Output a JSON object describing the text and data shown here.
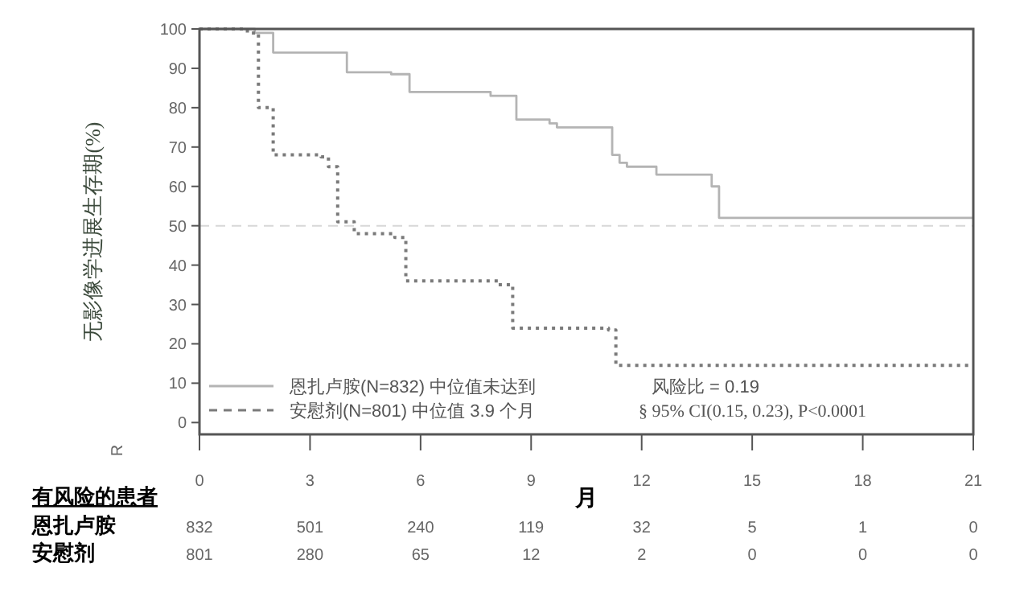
{
  "chart_data": {
    "type": "step",
    "ylabel": "无影像学进展生存期(%)",
    "xlabel": "月",
    "xlim": [
      0,
      21
    ],
    "xticks": [
      0,
      3,
      6,
      9,
      12,
      15,
      18,
      21
    ],
    "ylim": [
      -3,
      100
    ],
    "yticks": [
      0,
      10,
      20,
      30,
      40,
      50,
      60,
      70,
      80,
      90,
      100
    ],
    "grid": false,
    "legend": "bottom left",
    "ref_lines": [
      {
        "axis": "y",
        "value": 50,
        "color": "#d8d8d8",
        "line_style": "dashed"
      }
    ],
    "series": [
      {
        "name": "恩扎卢胺(N=832) 中位值未达到",
        "color": "#b4b4b4",
        "line_style": "solid",
        "x": [
          0,
          1.5,
          2.0,
          3.75,
          4.0,
          5.2,
          5.7,
          7.9,
          8.6,
          9.5,
          9.7,
          10.9,
          11.2,
          11.4,
          11.6,
          12.4,
          13.9,
          14.1,
          21
        ],
        "values": [
          100,
          99,
          94,
          94,
          89,
          88.5,
          84,
          83,
          77,
          76,
          75,
          75,
          68,
          66,
          65,
          63,
          60,
          52,
          52
        ]
      },
      {
        "name": "安慰剂(N=801) 中位值 3.9 个月",
        "color": "#7a7a7a",
        "line_style": "dotted",
        "x": [
          0,
          1.3,
          1.6,
          2.0,
          3.3,
          3.5,
          3.75,
          4.2,
          5.3,
          5.6,
          8.1,
          8.5,
          11.1,
          11.3,
          21
        ],
        "values": [
          100,
          99,
          80,
          68,
          67.5,
          65,
          51,
          48,
          47,
          36,
          35,
          24,
          23.5,
          14.5,
          14.5
        ]
      }
    ],
    "annotations": [
      "有风险的患者",
      "恩扎卢胺",
      "832",
      "501",
      "240",
      "119",
      "32",
      "5",
      "1",
      "0",
      "安慰剂",
      "801",
      "280",
      "65",
      "12",
      "2",
      "0",
      "0",
      "0",
      "风险比 = 0.19",
      "§ 95% CI(0.15, 0.23), P<0.0001",
      "R"
    ]
  }
}
